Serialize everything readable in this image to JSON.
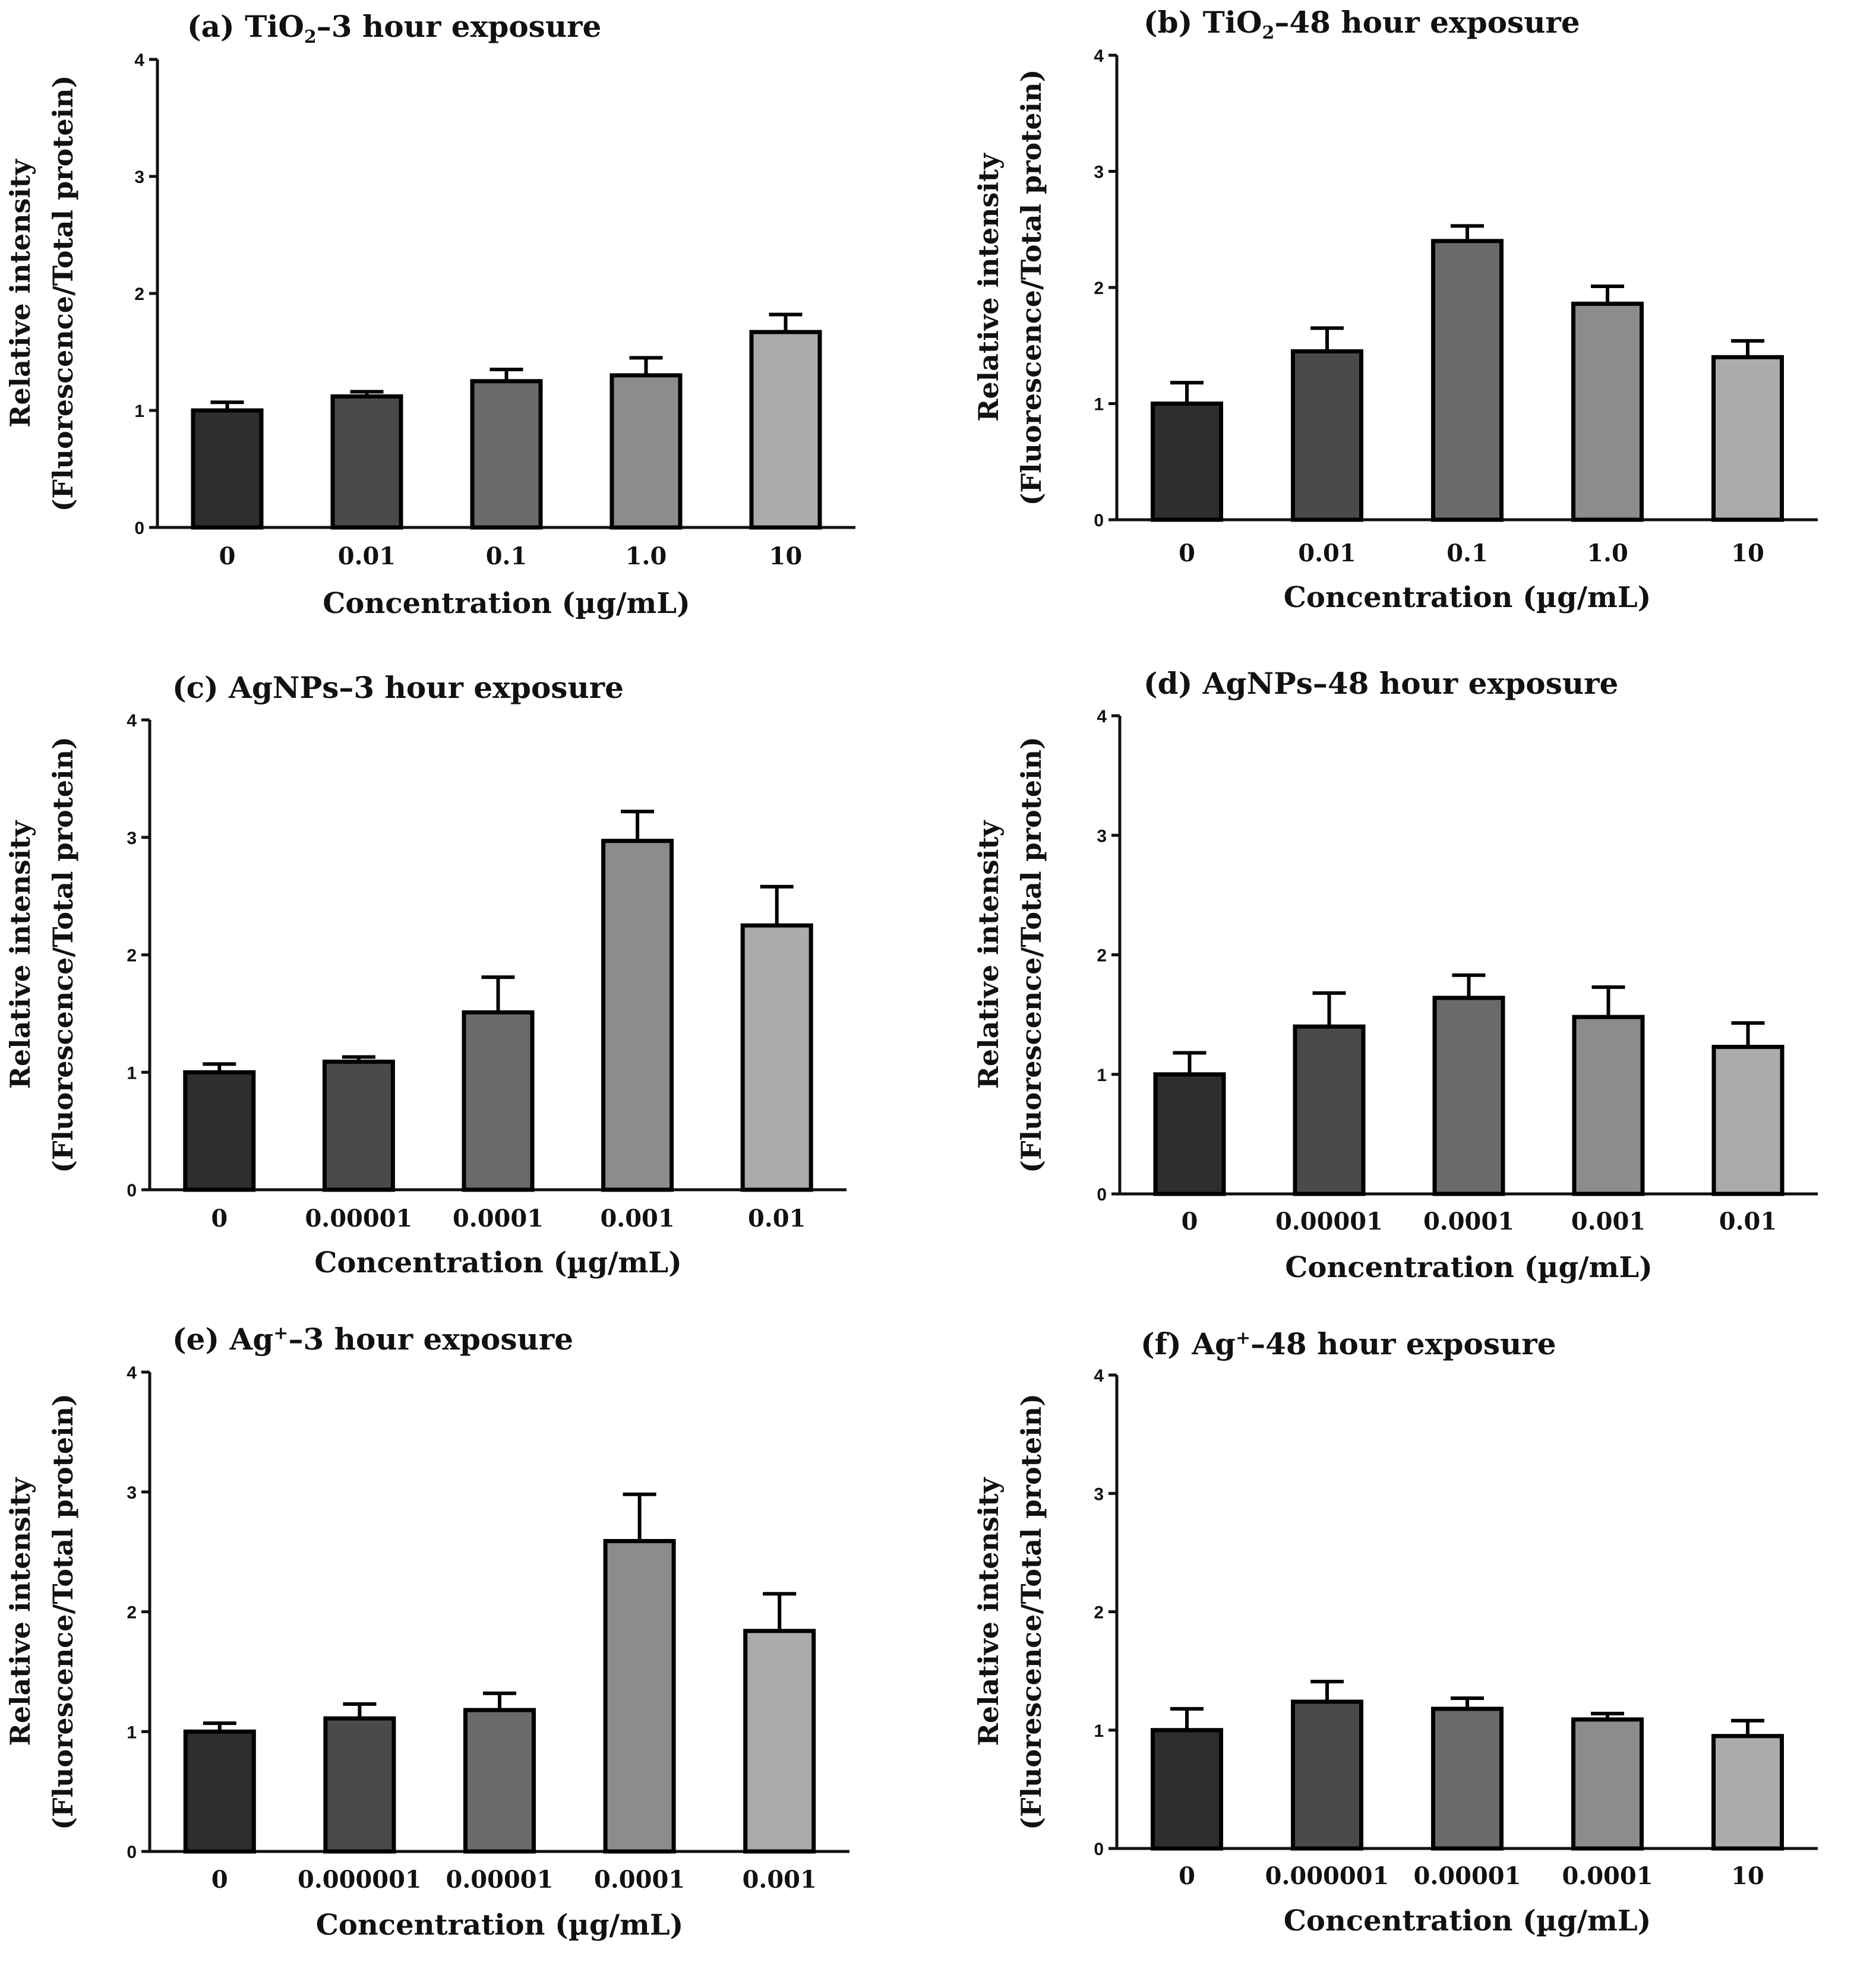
{
  "chart_data": [
    {
      "type": "bar",
      "panel": "(a)",
      "title": "(a) TiO",
      "title_sub": "2",
      "title_rest": "–3 hour exposure",
      "categories": [
        "0",
        "0.01",
        "0.1",
        "1.0",
        "10"
      ],
      "values": [
        1.0,
        1.12,
        1.25,
        1.3,
        1.67
      ],
      "errors": [
        0.07,
        0.04,
        0.1,
        0.15,
        0.15
      ],
      "xlabel": "Concentration (µg/mL)",
      "ylabel_line1": "Relative intensity",
      "ylabel_line2": "(Fluorescence/Total protein)",
      "ylim": [
        0,
        4
      ],
      "yticks": [
        "0",
        "1",
        "2",
        "3",
        "4"
      ]
    },
    {
      "type": "bar",
      "panel": "(b)",
      "title": "(b) TiO",
      "title_sub": "2",
      "title_rest": "–48 hour exposure",
      "categories": [
        "0",
        "0.01",
        "0.1",
        "1.0",
        "10"
      ],
      "values": [
        1.0,
        1.45,
        2.4,
        1.86,
        1.4
      ],
      "errors": [
        0.18,
        0.2,
        0.13,
        0.15,
        0.14
      ],
      "xlabel": "Concentration (µg/mL)",
      "ylabel_line1": "Relative intensity",
      "ylabel_line2": "(Fluorescence/Total protein)",
      "ylim": [
        0,
        4
      ],
      "yticks": [
        "0",
        "1",
        "2",
        "3",
        "4"
      ]
    },
    {
      "type": "bar",
      "panel": "(c)",
      "title": "(c) AgNPs–3 hour exposure",
      "title_sub": "",
      "title_rest": "",
      "categories": [
        "0",
        "0.00001",
        "0.0001",
        "0.001",
        "0.01"
      ],
      "values": [
        1.0,
        1.09,
        1.51,
        2.97,
        2.25
      ],
      "errors": [
        0.07,
        0.04,
        0.3,
        0.25,
        0.33
      ],
      "xlabel": "Concentration (µg/mL)",
      "ylabel_line1": "Relative intensity",
      "ylabel_line2": "(Fluorescence/Total protein)",
      "ylim": [
        0,
        4
      ],
      "yticks": [
        "0",
        "1",
        "2",
        "3",
        "4"
      ]
    },
    {
      "type": "bar",
      "panel": "(d)",
      "title": "(d) AgNPs–48 hour exposure",
      "title_sub": "",
      "title_rest": "",
      "categories": [
        "0",
        "0.00001",
        "0.0001",
        "0.001",
        "0.01"
      ],
      "values": [
        1.0,
        1.4,
        1.64,
        1.48,
        1.23
      ],
      "errors": [
        0.18,
        0.28,
        0.19,
        0.25,
        0.2
      ],
      "xlabel": "Concentration (µg/mL)",
      "ylabel_line1": "Relative intensity",
      "ylabel_line2": "(Fluorescence/Total protein)",
      "ylim": [
        0,
        4
      ],
      "yticks": [
        "0",
        "1",
        "2",
        "3",
        "4"
      ]
    },
    {
      "type": "bar",
      "panel": "(e)",
      "title": "(e) Ag",
      "title_sup": "+",
      "title_rest": "–3 hour exposure",
      "categories": [
        "0",
        "0.000001",
        "0.00001",
        "0.0001",
        "0.001"
      ],
      "values": [
        1.0,
        1.11,
        1.18,
        2.59,
        1.84
      ],
      "errors": [
        0.07,
        0.12,
        0.14,
        0.39,
        0.31
      ],
      "xlabel": "Concentration (µg/mL)",
      "ylabel_line1": "Relative intensity",
      "ylabel_line2": "(Fluorescence/Total protein)",
      "ylim": [
        0,
        4
      ],
      "yticks": [
        "0",
        "1",
        "2",
        "3",
        "4"
      ]
    },
    {
      "type": "bar",
      "panel": "(f)",
      "title": "(f) Ag",
      "title_sup": "+",
      "title_rest": "–48 hour exposure",
      "categories": [
        "0",
        "0.000001",
        "0.00001",
        "0.0001",
        "10"
      ],
      "values": [
        1.0,
        1.24,
        1.18,
        1.09,
        0.95
      ],
      "errors": [
        0.18,
        0.17,
        0.09,
        0.05,
        0.13
      ],
      "xlabel": "Concentration (µg/mL)",
      "ylabel_line1": "Relative intensity",
      "ylabel_line2": "(Fluorescence/Total protein)",
      "ylim": [
        0,
        4
      ],
      "yticks": [
        "0",
        "1",
        "2",
        "3",
        "4"
      ]
    }
  ],
  "bar_colors": [
    "#2e2e2e",
    "#4a4a4a",
    "#6a6a6a",
    "#8c8c8c",
    "#ababab"
  ]
}
